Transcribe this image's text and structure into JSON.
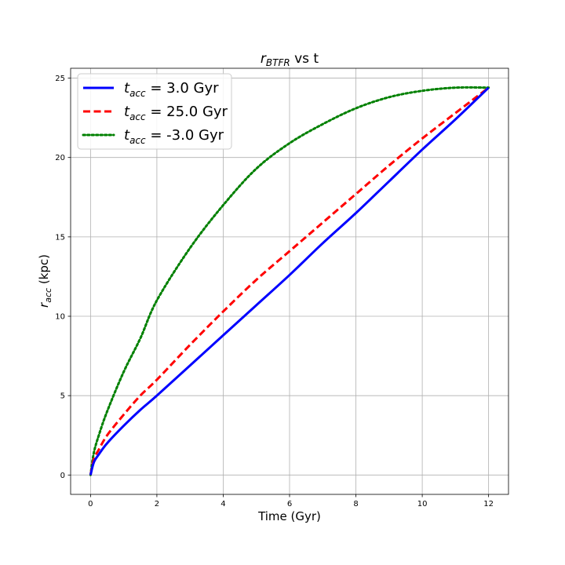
{
  "chart_data": {
    "type": "line",
    "title": "r_BTFR vs t",
    "title_main": "r",
    "title_sub": "BTFR",
    "title_rest": " vs t",
    "xlabel": "Time (Gyr)",
    "ylabel_main": "r",
    "ylabel_sub": "acc",
    "ylabel_rest": " (kpc)",
    "xlim": [
      -0.6,
      12.6
    ],
    "ylim": [
      -1.22,
      25.62
    ],
    "xticks": [
      0,
      2,
      4,
      6,
      8,
      10,
      12
    ],
    "yticks": [
      0,
      5,
      10,
      15,
      20,
      25
    ],
    "grid": true,
    "legend_position": "top-left",
    "series": [
      {
        "name": "t_acc = 3.0 Gyr",
        "legend_main": "t",
        "legend_sub": "acc",
        "legend_rest": " = 3.0 Gyr",
        "color": "#0000ff",
        "style": "solid",
        "x": [
          0,
          0.1,
          0.25,
          0.5,
          1,
          1.5,
          2,
          3,
          4,
          5,
          6,
          7,
          8,
          9,
          10,
          11,
          12
        ],
        "y": [
          0,
          0.8,
          1.3,
          2.0,
          3.1,
          4.1,
          5.0,
          6.9,
          8.8,
          10.7,
          12.6,
          14.6,
          16.5,
          18.5,
          20.5,
          22.4,
          24.4
        ]
      },
      {
        "name": "t_acc = 25.0 Gyr",
        "legend_main": "t",
        "legend_sub": "acc",
        "legend_rest": " = 25.0 Gyr",
        "color": "#ff0000",
        "style": "dashed",
        "x": [
          0,
          0.1,
          0.25,
          0.5,
          1,
          1.5,
          2,
          3,
          4,
          5,
          6,
          7,
          8,
          9,
          10,
          11,
          12
        ],
        "y": [
          0,
          1.0,
          1.6,
          2.5,
          3.8,
          5.0,
          6.0,
          8.2,
          10.3,
          12.3,
          14.1,
          15.9,
          17.7,
          19.5,
          21.2,
          22.8,
          24.4
        ]
      },
      {
        "name": "t_acc = -3.0 Gyr",
        "legend_main": "t",
        "legend_sub": "acc",
        "legend_rest": " = -3.0 Gyr",
        "color": "#008000",
        "style": "dotted",
        "x": [
          0,
          0.1,
          0.25,
          0.5,
          1,
          1.5,
          2,
          3,
          4,
          5,
          6,
          7,
          8,
          9,
          10,
          11,
          12
        ],
        "y": [
          0,
          1.4,
          2.5,
          4.0,
          6.5,
          8.6,
          11.0,
          14.3,
          17.0,
          19.3,
          20.9,
          22.1,
          23.1,
          23.8,
          24.2,
          24.4,
          24.4
        ]
      }
    ]
  }
}
